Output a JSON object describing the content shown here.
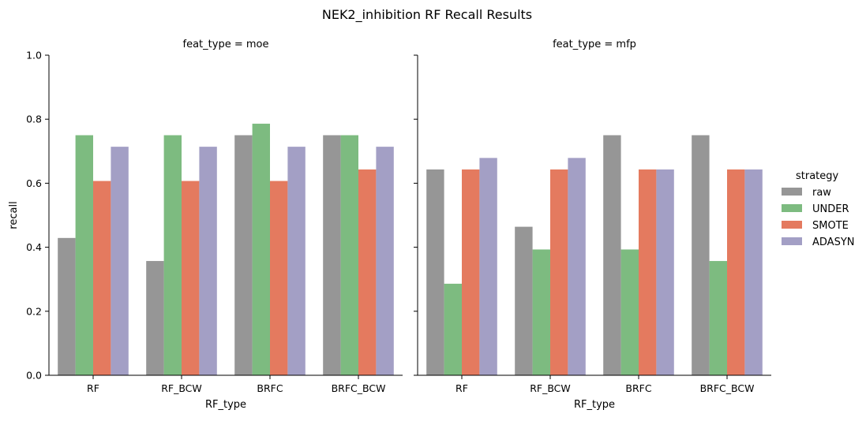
{
  "figure": {
    "title": "NEK2_inhibition RF Recall Results"
  },
  "legend": {
    "title": "strategy",
    "entries": [
      "raw",
      "UNDER",
      "SMOTE",
      "ADASYN"
    ],
    "colors": [
      "#969696",
      "#7dbb80",
      "#e47a5f",
      "#a39fc5"
    ]
  },
  "chart_data": [
    {
      "type": "bar",
      "title": "feat_type = moe",
      "xlabel": "RF_type",
      "ylabel": "recall",
      "ylim": [
        0,
        1.0
      ],
      "yticks": [
        "0.0",
        "0.2",
        "0.4",
        "0.6",
        "0.8",
        "1.0"
      ],
      "categories": [
        "RF",
        "RF_BCW",
        "BRFC",
        "BRFC_BCW"
      ],
      "series": [
        {
          "name": "raw",
          "values": [
            0.429,
            0.357,
            0.75,
            0.75
          ]
        },
        {
          "name": "UNDER",
          "values": [
            0.75,
            0.75,
            0.786,
            0.75
          ]
        },
        {
          "name": "SMOTE",
          "values": [
            0.607,
            0.607,
            0.607,
            0.643
          ]
        },
        {
          "name": "ADASYN",
          "values": [
            0.714,
            0.714,
            0.714,
            0.714
          ]
        }
      ]
    },
    {
      "type": "bar",
      "title": "feat_type = mfp",
      "xlabel": "RF_type",
      "ylabel": "",
      "ylim": [
        0,
        1.0
      ],
      "yticks": [
        "",
        "",
        "",
        "",
        "",
        ""
      ],
      "categories": [
        "RF",
        "RF_BCW",
        "BRFC",
        "BRFC_BCW"
      ],
      "series": [
        {
          "name": "raw",
          "values": [
            0.643,
            0.464,
            0.75,
            0.75
          ]
        },
        {
          "name": "UNDER",
          "values": [
            0.286,
            0.393,
            0.393,
            0.357
          ]
        },
        {
          "name": "SMOTE",
          "values": [
            0.643,
            0.643,
            0.643,
            0.643
          ]
        },
        {
          "name": "ADASYN",
          "values": [
            0.679,
            0.679,
            0.643,
            0.643
          ]
        }
      ]
    }
  ]
}
